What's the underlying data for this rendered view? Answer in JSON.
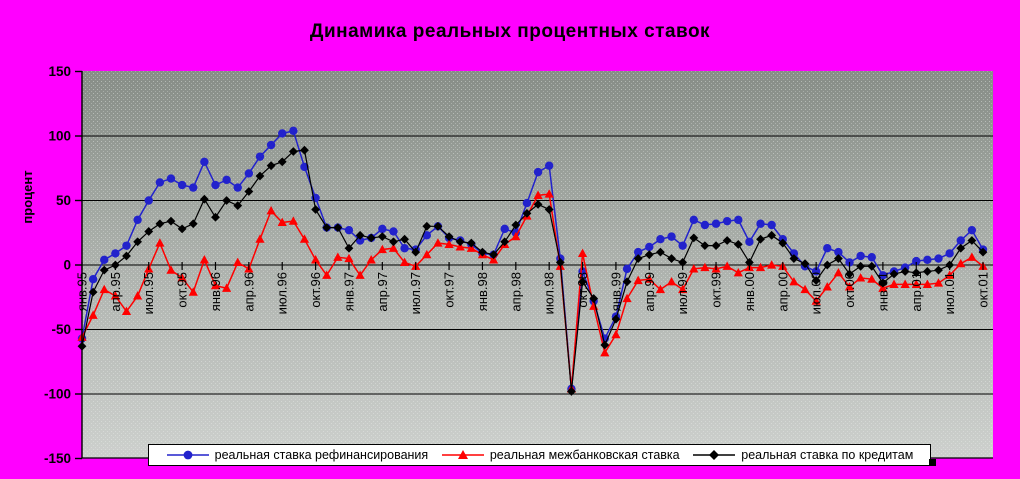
{
  "chart_data": {
    "type": "line",
    "title": "Динамика реальных процентных ставок",
    "xlabel": "",
    "ylabel": "процент",
    "ylim": [
      -150,
      150
    ],
    "y_ticks": [
      150,
      100,
      50,
      0,
      -50,
      -100,
      -150
    ],
    "grid": "horizontal",
    "x_is_monthly": true,
    "points_per_series": 82,
    "x_tick_every_n_points": 3,
    "x_tick_labels": [
      "янв.95",
      "апр.95",
      "июл.95",
      "окт.95",
      "янв.96",
      "апр.96",
      "июл.96",
      "окт.96",
      "янв.97",
      "апр.97",
      "июл.97",
      "окт.97",
      "янв.98",
      "апр.98",
      "июл.98",
      "окт.98",
      "янв.99",
      "апр.99",
      "июл.99",
      "окт.99",
      "янв.00",
      "апр.00",
      "июл.00",
      "окт.00",
      "янв.01",
      "апр.01",
      "июл.01",
      "окт.01"
    ],
    "legend_position": "bottom",
    "series": [
      {
        "name": "реальная ставка рефинансирования",
        "key": "refinancing",
        "color": "#2222cc",
        "marker": "circle",
        "values": [
          -57,
          -11,
          4,
          9,
          15,
          35,
          50,
          64,
          67,
          62,
          60,
          80,
          62,
          66,
          60,
          71,
          84,
          93,
          102,
          104,
          76,
          52,
          29,
          29,
          27,
          19,
          21,
          28,
          26,
          13,
          12,
          23,
          30,
          21,
          19,
          16,
          9,
          8,
          28,
          25,
          48,
          72,
          77,
          5,
          -96,
          -5,
          -28,
          -57,
          -40,
          -3,
          10,
          14,
          20,
          22,
          15,
          35,
          31,
          32,
          34,
          35,
          18,
          32,
          31,
          20,
          9,
          -1,
          -5,
          13,
          10,
          2,
          7,
          6,
          -8,
          -5,
          -2,
          3,
          4,
          5,
          9,
          19,
          27,
          12
        ]
      },
      {
        "name": "реальная межбанковская ставка",
        "key": "interbank",
        "color": "#ff0000",
        "marker": "triangle",
        "values": [
          -56,
          -39,
          -19,
          -24,
          -36,
          -24,
          -3,
          17,
          -4,
          -10,
          -21,
          4,
          -16,
          -18,
          2,
          -3,
          20,
          42,
          33,
          34,
          20,
          4,
          -8,
          6,
          5,
          -8,
          4,
          12,
          13,
          2,
          -1,
          8,
          17,
          16,
          14,
          13,
          8,
          4,
          16,
          22,
          38,
          54,
          55,
          -1,
          -96,
          9,
          -32,
          -68,
          -54,
          -26,
          -12,
          -11,
          -19,
          -13,
          -19,
          -3,
          -2,
          -3,
          -1,
          -6,
          -2,
          -2,
          0,
          -1,
          -13,
          -19,
          -28,
          -17,
          -6,
          -17,
          -10,
          -11,
          -18,
          -15,
          -15,
          -15,
          -15,
          -14,
          -8,
          1,
          6,
          -1
        ]
      },
      {
        "name": "реальная ставка по кредитам",
        "key": "credit",
        "color": "#000000",
        "marker": "diamond",
        "values": [
          -63,
          -21,
          -4,
          0,
          7,
          18,
          26,
          32,
          34,
          28,
          32,
          51,
          37,
          50,
          46,
          57,
          69,
          77,
          80,
          88,
          89,
          43,
          29,
          29,
          13,
          23,
          21,
          22,
          18,
          20,
          10,
          30,
          30,
          22,
          18,
          17,
          10,
          8,
          18,
          31,
          40,
          47,
          43,
          2,
          -98,
          -13,
          -26,
          -62,
          -42,
          -13,
          5,
          8,
          10,
          5,
          2,
          21,
          15,
          15,
          19,
          16,
          2,
          20,
          23,
          17,
          5,
          1,
          -12,
          0,
          5,
          -7,
          -1,
          -1,
          -14,
          -7,
          -5,
          -6,
          -5,
          -4,
          0,
          13,
          19,
          10
        ]
      }
    ],
    "colors": {
      "background": "#ff00ff",
      "plot_gradient_top": "#878d87",
      "plot_gradient_bottom": "#cdd0cd",
      "gridline": "#000000",
      "axis": "#000000"
    }
  }
}
